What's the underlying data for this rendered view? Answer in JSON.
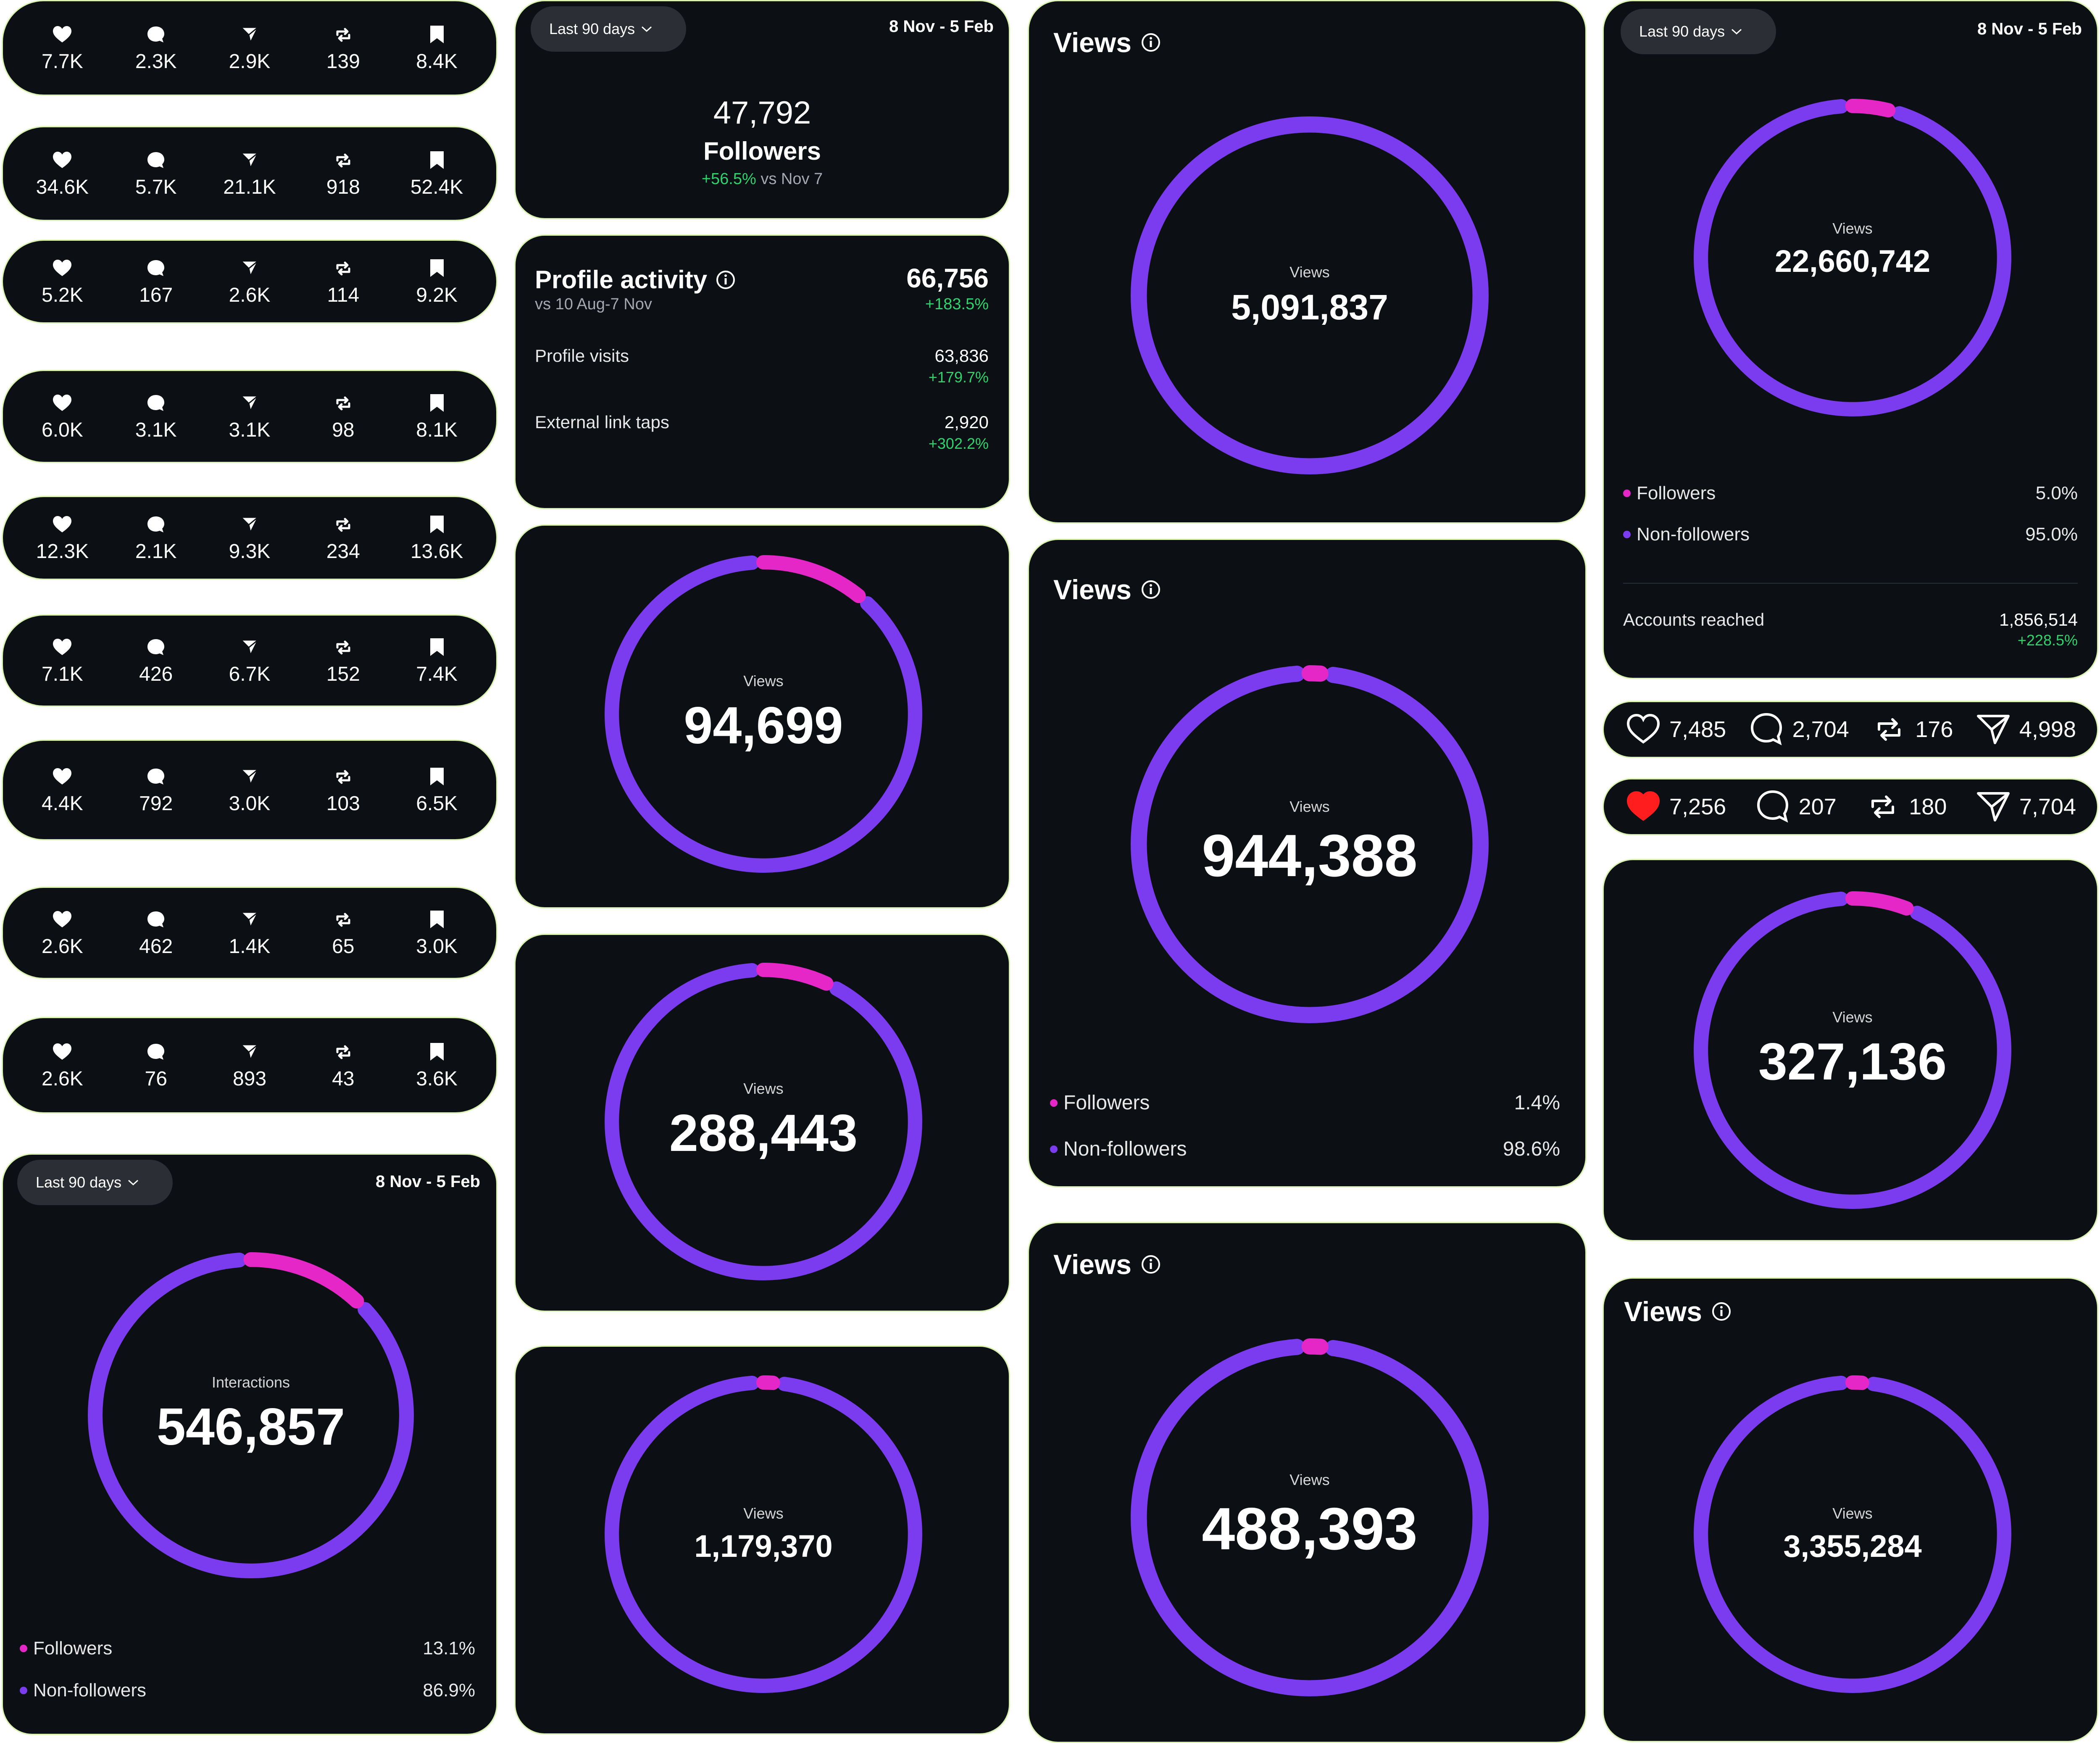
{
  "colors": {
    "ring": "#7b3cf0",
    "accent": "#e627c8",
    "bg": "#0c0f14",
    "green": "#2fd36e",
    "heart_red": "#ff1d1d"
  },
  "stat_rows": [
    {
      "likes": "7.7K",
      "comments": "2.3K",
      "shares": "2.9K",
      "reposts": "139",
      "saves": "8.4K"
    },
    {
      "likes": "34.6K",
      "comments": "5.7K",
      "shares": "21.1K",
      "reposts": "918",
      "saves": "52.4K"
    },
    {
      "likes": "5.2K",
      "comments": "167",
      "shares": "2.6K",
      "reposts": "114",
      "saves": "9.2K"
    },
    {
      "likes": "6.0K",
      "comments": "3.1K",
      "shares": "3.1K",
      "reposts": "98",
      "saves": "8.1K"
    },
    {
      "likes": "12.3K",
      "comments": "2.1K",
      "shares": "9.3K",
      "reposts": "234",
      "saves": "13.6K"
    },
    {
      "likes": "7.1K",
      "comments": "426",
      "shares": "6.7K",
      "reposts": "152",
      "saves": "7.4K"
    },
    {
      "likes": "4.4K",
      "comments": "792",
      "shares": "3.0K",
      "reposts": "103",
      "saves": "6.5K"
    },
    {
      "likes": "2.6K",
      "comments": "462",
      "shares": "1.4K",
      "reposts": "65",
      "saves": "3.0K"
    },
    {
      "likes": "2.6K",
      "comments": "76",
      "shares": "893",
      "reposts": "43",
      "saves": "3.6K"
    }
  ],
  "interactions_card": {
    "range_button": "Last 90 days",
    "date_range": "8 Nov - 5 Feb",
    "ring_label": "Interactions",
    "ring_value": "546,857",
    "followers_fraction": 0.131,
    "legend": [
      {
        "label": "Followers",
        "value": "13.1%"
      },
      {
        "label": "Non-followers",
        "value": "86.9%"
      }
    ]
  },
  "followers_card": {
    "range_button": "Last 90 days",
    "date_range": "8 Nov - 5 Feb",
    "count": "47,792",
    "label": "Followers",
    "change": "+56.5%",
    "change_suffix": "vs Nov 7"
  },
  "profile_activity": {
    "title": "Profile activity",
    "total": "66,756",
    "total_change": "+183.5%",
    "subtitle": "vs 10 Aug-7 Nov",
    "rows": [
      {
        "label": "Profile visits",
        "value": "63,836",
        "change": "+179.7%"
      },
      {
        "label": "External link taps",
        "value": "2,920",
        "change": "+302.2%"
      }
    ]
  },
  "mid_rings": [
    {
      "label": "Views",
      "value": "94,699",
      "followers_fraction": 0.12
    },
    {
      "label": "Views",
      "value": "288,443",
      "followers_fraction": 0.08
    },
    {
      "label": "Views",
      "value": "1,179,370",
      "followers_fraction": 0.015
    }
  ],
  "views_cards": [
    {
      "title": "Views",
      "ring_label": "Views",
      "ring_value": "5,091,837",
      "followers_fraction": 0
    },
    {
      "title": "Views",
      "ring_label": "Views",
      "ring_value": "944,388",
      "followers_fraction": 0.014,
      "legend": [
        {
          "label": "Followers",
          "value": "1.4%"
        },
        {
          "label": "Non-followers",
          "value": "98.6%"
        }
      ]
    },
    {
      "title": "Views",
      "ring_label": "Views",
      "ring_value": "488,393",
      "followers_fraction": 0.02
    }
  ],
  "reach_card": {
    "range_button": "Last 90 days",
    "date_range": "8 Nov - 5 Feb",
    "ring_label": "Views",
    "ring_value": "22,660,742",
    "followers_fraction": 0.05,
    "legend": [
      {
        "label": "Followers",
        "value": "5.0%"
      },
      {
        "label": "Non-followers",
        "value": "95.0%"
      }
    ],
    "accounts_reached_label": "Accounts reached",
    "accounts_reached_value": "1,856,514",
    "accounts_reached_change": "+228.5%"
  },
  "engagement_bars": [
    {
      "likes": "7,485",
      "comments": "2,704",
      "reposts": "176",
      "shares": "4,998",
      "liked": false
    },
    {
      "likes": "7,256",
      "comments": "207",
      "reposts": "180",
      "shares": "7,704",
      "liked": true
    }
  ],
  "right_ring": {
    "label": "Views",
    "value": "327,136",
    "followers_fraction": 0.07
  },
  "right_views_card": {
    "title": "Views",
    "ring_label": "Views",
    "ring_value": "3,355,284",
    "followers_fraction": 0.012
  }
}
